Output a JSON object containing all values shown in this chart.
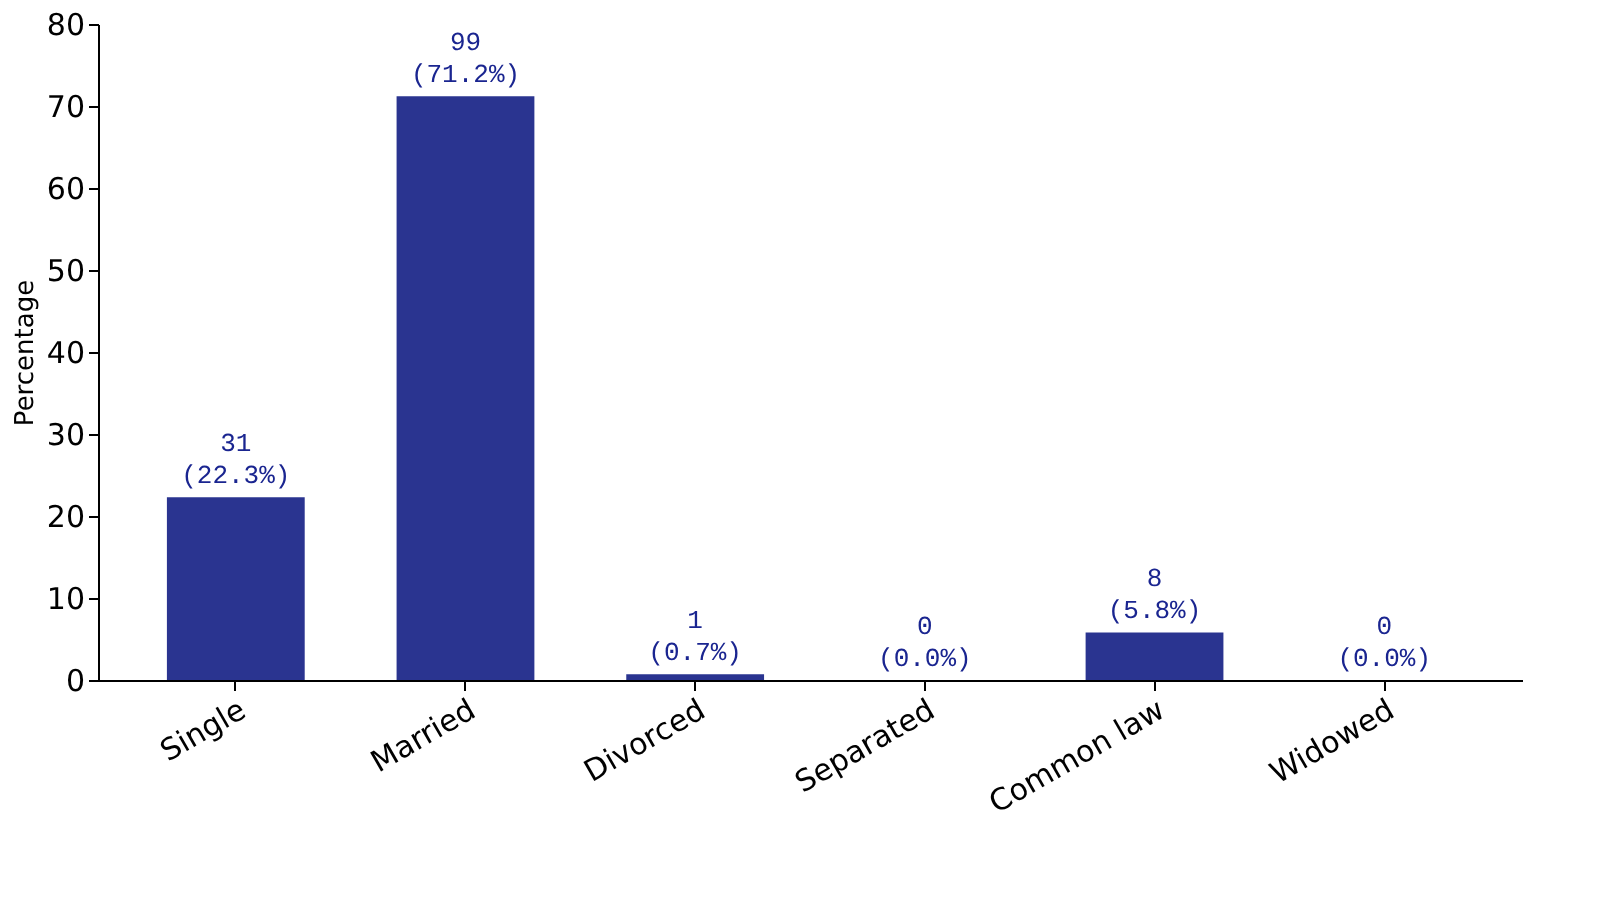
{
  "chart_data": {
    "type": "bar",
    "ylabel": "Percentage",
    "categories": [
      "Single",
      "Married",
      "Divorced",
      "Separated",
      "Common law",
      "Widowed"
    ],
    "values": [
      22.3,
      71.2,
      0.7,
      0,
      5.8,
      0
    ],
    "value_labels": [
      "31\n(22.3%)",
      "99\n(71.2%)",
      "1\n(0.7%)",
      "0\n(0.0%)",
      "8\n(5.8%)",
      "0\n(0.0%)"
    ],
    "color": "#2a3490",
    "ylim": [
      0,
      80
    ],
    "yticks": [
      0,
      10,
      20,
      30,
      40,
      50,
      60,
      70,
      80
    ],
    "grid": false
  }
}
